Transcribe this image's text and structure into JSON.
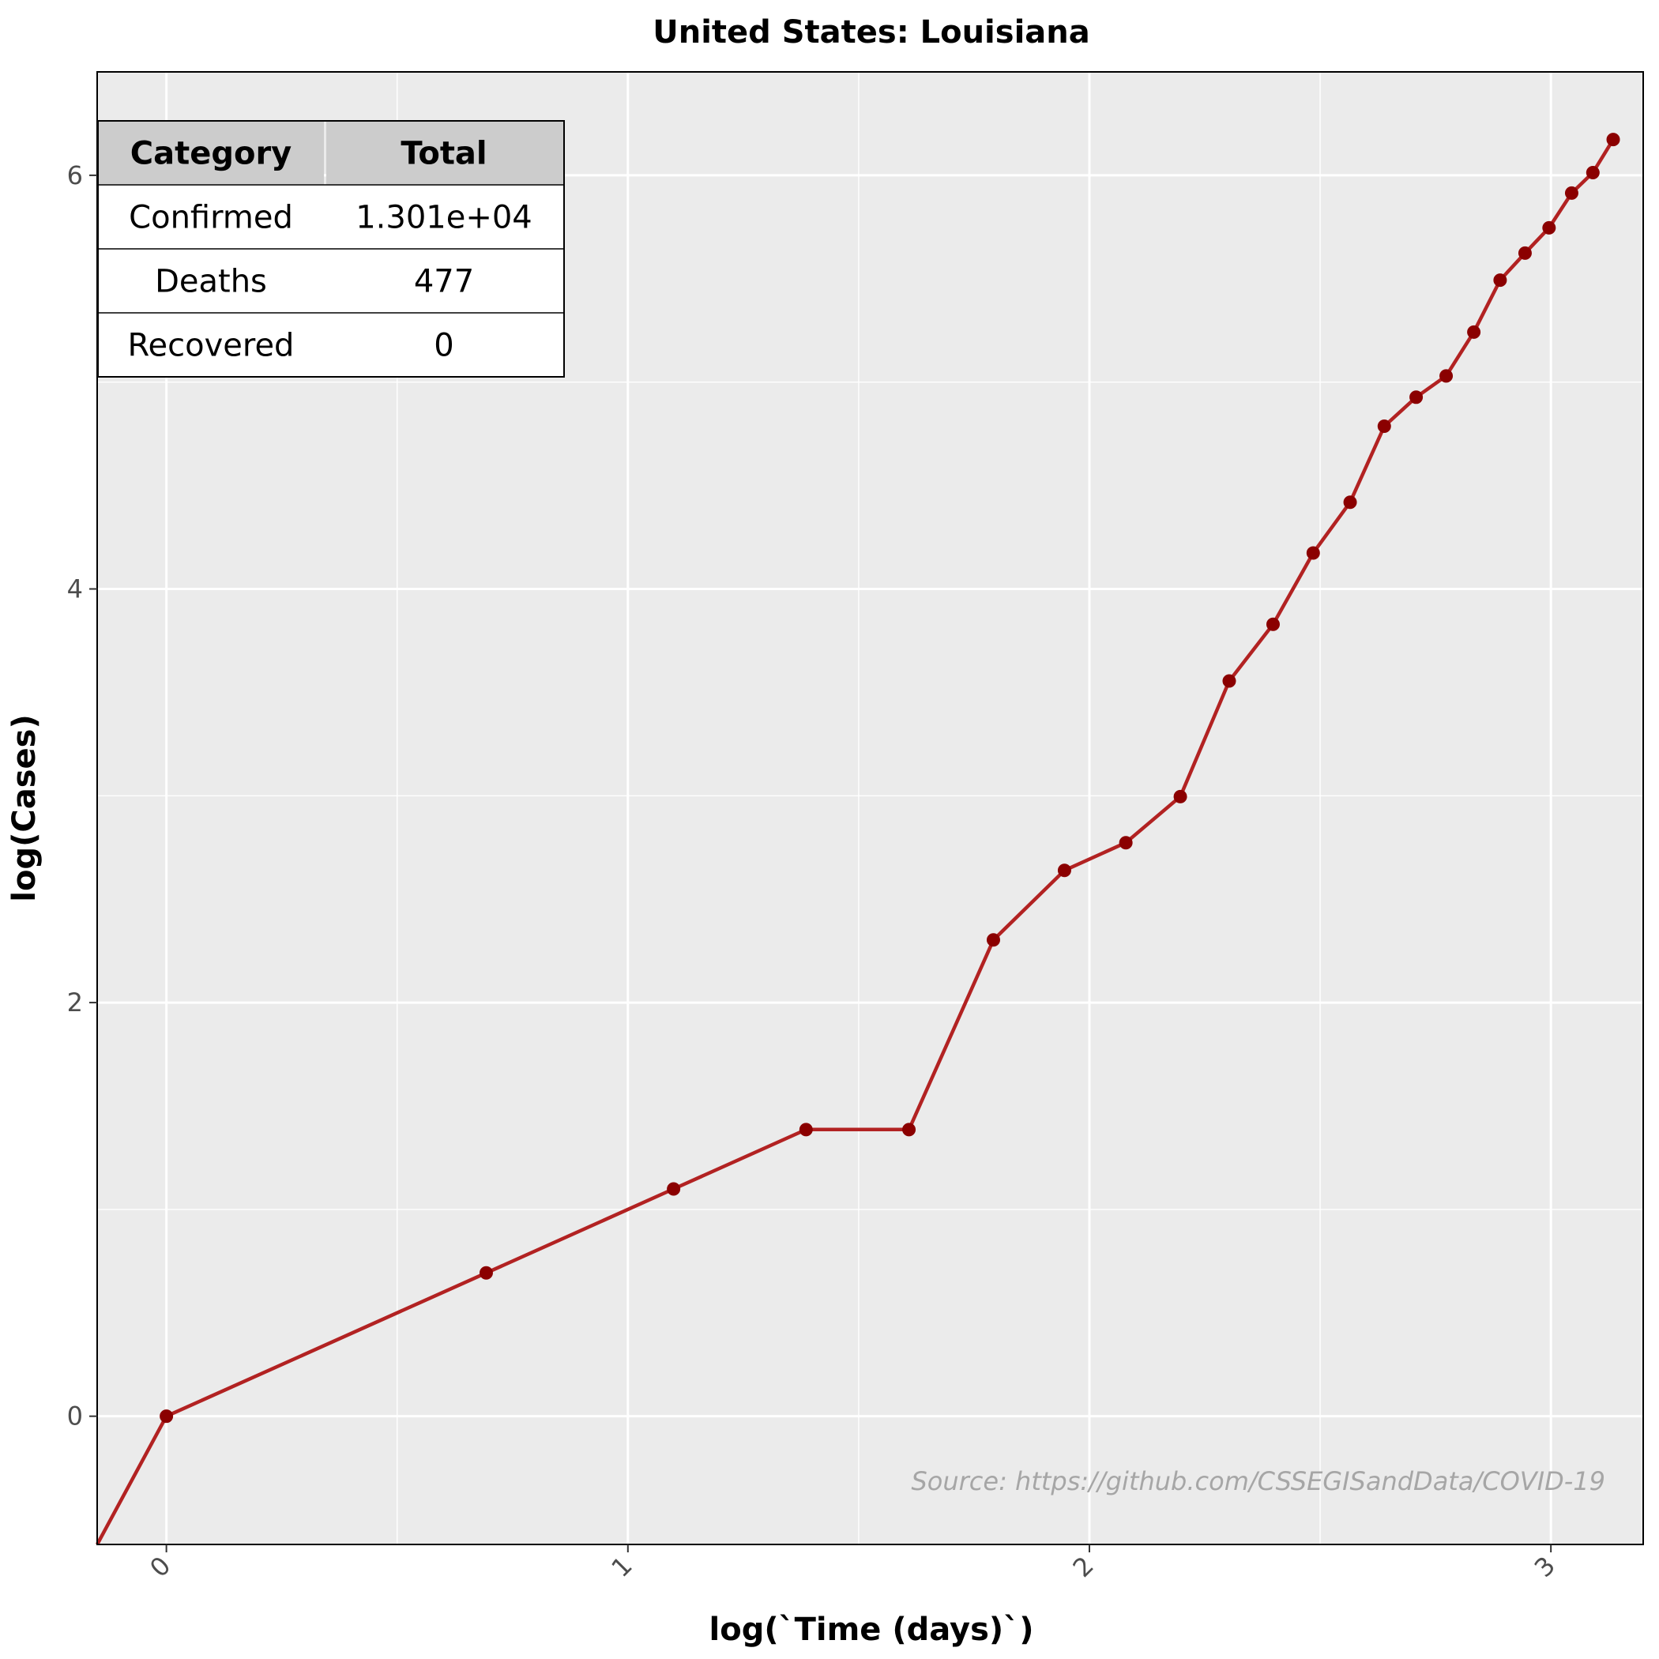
{
  "chart_data": {
    "type": "line",
    "title": "United States: Louisiana",
    "xlabel": "log(`Time (days)`)",
    "ylabel": "log(Cases)",
    "xlim": [
      -0.15,
      3.2
    ],
    "ylim": [
      -0.62,
      6.5
    ],
    "x_ticks": [
      0,
      1,
      2,
      3
    ],
    "x_tick_labels": [
      "0",
      "1",
      "2",
      "3"
    ],
    "y_ticks": [
      0,
      2,
      4,
      6
    ],
    "y_tick_labels": [
      "0",
      "2",
      "4",
      "6"
    ],
    "grid": true,
    "line_color": "#b22222",
    "panel_color": "#ebebeb",
    "series": [
      {
        "x": [
          -0.15,
          0,
          0.693,
          1.099,
          1.386,
          1.609,
          1.792,
          1.946,
          2.079,
          2.197,
          2.303,
          2.398,
          2.485,
          2.565,
          2.639,
          2.708,
          2.773,
          2.833,
          2.89,
          2.944,
          2.996,
          3.045,
          3.091,
          3.135
        ],
        "y": [
          -0.62,
          0,
          0.693,
          1.099,
          1.386,
          1.386,
          2.303,
          2.639,
          2.773,
          2.996,
          3.555,
          3.829,
          4.174,
          4.419,
          4.787,
          4.927,
          5.03,
          5.242,
          5.493,
          5.624,
          5.746,
          5.914,
          6.013,
          6.173
        ]
      }
    ],
    "annotation": "Source: https://github.com/CSSEGISandData/COVID-19",
    "table": {
      "headers": [
        "Category",
        "Total"
      ],
      "rows": [
        [
          "Confirmed",
          "1.301e+04"
        ],
        [
          "Deaths",
          "477"
        ],
        [
          "Recovered",
          "0"
        ]
      ]
    }
  }
}
